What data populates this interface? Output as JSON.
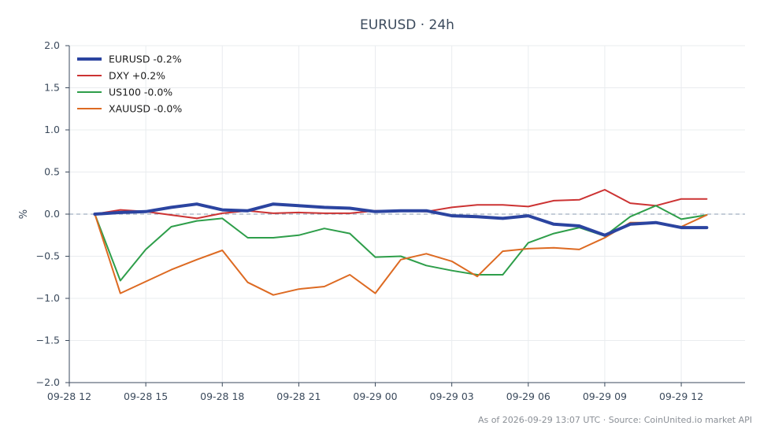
{
  "chart_data": {
    "type": "line",
    "title": "EURUSD · 24h",
    "xlabel": "",
    "ylabel": "%",
    "ylim": [
      -2.0,
      2.0
    ],
    "yticks": [
      -2.0,
      -1.5,
      -1.0,
      -0.5,
      0.0,
      0.5,
      1.0,
      1.5,
      2.0
    ],
    "ytick_labels": [
      "−2.0",
      "−1.5",
      "−1.0",
      "−0.5",
      "0.0",
      "0.5",
      "1.0",
      "1.5",
      "2.0"
    ],
    "xlim": [
      "09-28 12:00",
      "09-29 14:30"
    ],
    "x": [
      "09-28 13:00",
      "09-28 14:00",
      "09-28 15:00",
      "09-28 16:00",
      "09-28 17:00",
      "09-28 18:00",
      "09-28 19:00",
      "09-28 20:00",
      "09-28 21:00",
      "09-28 22:00",
      "09-28 23:00",
      "09-29 00:00",
      "09-29 01:00",
      "09-29 02:00",
      "09-29 03:00",
      "09-29 04:00",
      "09-29 05:00",
      "09-29 06:00",
      "09-29 07:00",
      "09-29 08:00",
      "09-29 09:00",
      "09-29 10:00",
      "09-29 11:00",
      "09-29 12:00",
      "09-29 13:00"
    ],
    "xticks": [
      "09-28 12:00",
      "09-28 15:00",
      "09-28 18:00",
      "09-28 21:00",
      "09-29 00:00",
      "09-29 03:00",
      "09-29 06:00",
      "09-29 09:00",
      "09-29 12:00"
    ],
    "xtick_labels": [
      "09-28 12",
      "09-28 15",
      "09-28 18",
      "09-28 21",
      "09-29 00",
      "09-29 03",
      "09-29 06",
      "09-29 09",
      "09-29 12"
    ],
    "grid": true,
    "legend_position": "top-left",
    "reference_line": 0.0,
    "series": [
      {
        "name": "EURUSD -0.2%",
        "color": "#2b44a0",
        "width": 4,
        "values": [
          0.0,
          0.02,
          0.03,
          0.08,
          0.12,
          0.05,
          0.04,
          0.12,
          0.1,
          0.08,
          0.07,
          0.03,
          0.04,
          0.04,
          -0.02,
          -0.03,
          -0.05,
          -0.02,
          -0.12,
          -0.14,
          -0.25,
          -0.12,
          -0.1,
          -0.16,
          -0.16
        ]
      },
      {
        "name": "DXY +0.2%",
        "color": "#cc3333",
        "width": 2,
        "values": [
          0.0,
          0.05,
          0.03,
          -0.01,
          -0.05,
          0.01,
          0.04,
          0.01,
          0.02,
          0.01,
          0.01,
          0.04,
          0.04,
          0.03,
          0.08,
          0.11,
          0.11,
          0.09,
          0.16,
          0.17,
          0.29,
          0.13,
          0.1,
          0.18,
          0.18
        ]
      },
      {
        "name": "US100 -0.0%",
        "color": "#2e9e4a",
        "width": 2,
        "values": [
          0.0,
          -0.79,
          -0.42,
          -0.15,
          -0.08,
          -0.05,
          -0.28,
          -0.28,
          -0.25,
          -0.17,
          -0.23,
          -0.51,
          -0.5,
          -0.61,
          -0.67,
          -0.72,
          -0.72,
          -0.34,
          -0.23,
          -0.16,
          -0.26,
          -0.03,
          0.1,
          -0.06,
          -0.01
        ]
      },
      {
        "name": "XAUUSD -0.0%",
        "color": "#dd6a22",
        "width": 2,
        "values": [
          0.0,
          -0.94,
          -0.8,
          -0.66,
          -0.54,
          -0.43,
          -0.81,
          -0.96,
          -0.89,
          -0.86,
          -0.72,
          -0.94,
          -0.54,
          -0.47,
          -0.56,
          -0.74,
          -0.44,
          -0.41,
          -0.4,
          -0.42,
          -0.28,
          -0.1,
          -0.1,
          -0.15,
          -0.01
        ]
      }
    ]
  },
  "footer": "As of 2026-09-29 13:07 UTC · Source: CoinUnited.io market API"
}
